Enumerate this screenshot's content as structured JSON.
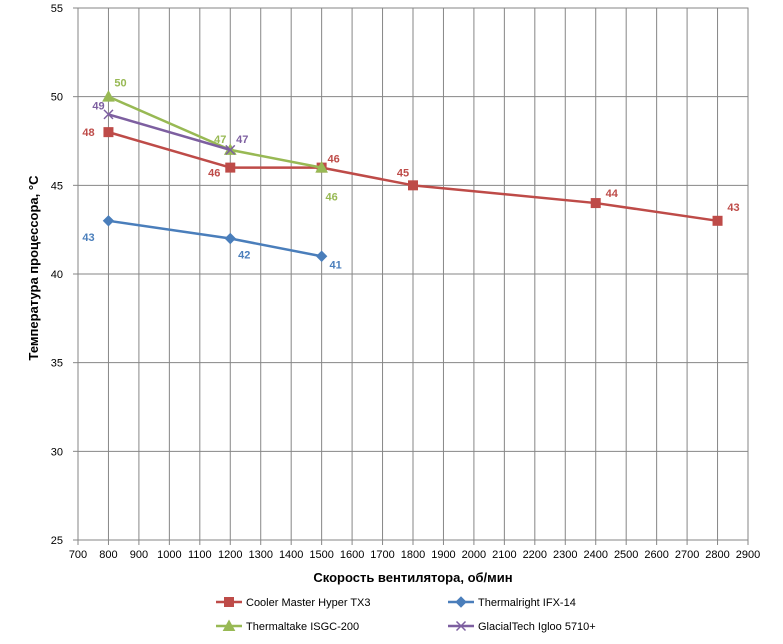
{
  "chart_data": {
    "type": "line",
    "xlabel": "Скорость вентилятора, об/мин",
    "ylabel": "Температура процессора, °C",
    "xlim": [
      700,
      2900
    ],
    "ylim": [
      25,
      55
    ],
    "xticks": [
      700,
      800,
      900,
      1000,
      1100,
      1200,
      1300,
      1400,
      1500,
      1600,
      1700,
      1800,
      1900,
      2000,
      2100,
      2200,
      2300,
      2400,
      2500,
      2600,
      2700,
      2800,
      2900
    ],
    "yticks": [
      25,
      30,
      35,
      40,
      45,
      50,
      55
    ],
    "grid": "vertical and horizontal major gridlines",
    "legend_position": "bottom",
    "series": [
      {
        "name": "Cooler Master Hyper TX3",
        "color": "#BE4B48",
        "marker": "square",
        "x": [
          800,
          1200,
          1500,
          1800,
          2400,
          2800
        ],
        "y": [
          48,
          46,
          46,
          45,
          44,
          43
        ],
        "labels": [
          "48",
          "46",
          "46",
          "45",
          "44",
          "43"
        ]
      },
      {
        "name": "Thermalright IFX-14",
        "color": "#4A7EBB",
        "marker": "diamond",
        "x": [
          800,
          1200,
          1500
        ],
        "y": [
          43,
          42,
          41
        ],
        "labels": [
          "43",
          "42",
          "41"
        ]
      },
      {
        "name": "Thermaltake ISGC-200",
        "color": "#98B954",
        "marker": "triangle",
        "x": [
          800,
          1200,
          1500
        ],
        "y": [
          50,
          47,
          46
        ],
        "labels": [
          "50",
          "47",
          "46"
        ]
      },
      {
        "name": "GlacialTech Igloo 5710+",
        "color": "#7D5FA0",
        "marker": "x",
        "x": [
          800,
          1200
        ],
        "y": [
          49,
          47
        ],
        "labels": [
          "49",
          "47"
        ]
      }
    ]
  }
}
